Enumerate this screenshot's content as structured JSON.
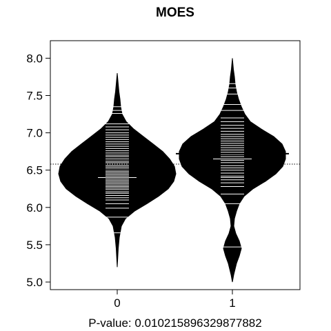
{
  "chart_data": {
    "type": "beanplot",
    "title": "MOES",
    "xlabel": "P-value: 0.010215896329877882",
    "ylabel": "",
    "ylim": [
      4.95,
      8.15
    ],
    "y_ticks": [
      5.0,
      5.5,
      6.0,
      6.5,
      7.0,
      7.5,
      8.0
    ],
    "y_tick_labels": [
      "5.0",
      "5.5",
      "6.0",
      "6.5",
      "7.0",
      "7.5",
      "8.0"
    ],
    "categories": [
      "0",
      "1"
    ],
    "overall_mean": 6.58,
    "groups": [
      {
        "name": "0",
        "mean": 6.51,
        "density": [
          [
            5.2,
            0.0
          ],
          [
            5.45,
            0.015
          ],
          [
            5.6,
            0.03
          ],
          [
            5.75,
            0.06
          ],
          [
            5.85,
            0.12
          ],
          [
            5.95,
            0.25
          ],
          [
            6.05,
            0.43
          ],
          [
            6.15,
            0.6
          ],
          [
            6.25,
            0.74
          ],
          [
            6.35,
            0.82
          ],
          [
            6.45,
            0.85
          ],
          [
            6.55,
            0.83
          ],
          [
            6.65,
            0.76
          ],
          [
            6.75,
            0.66
          ],
          [
            6.85,
            0.52
          ],
          [
            6.95,
            0.38
          ],
          [
            7.05,
            0.24
          ],
          [
            7.15,
            0.13
          ],
          [
            7.25,
            0.07
          ],
          [
            7.35,
            0.05
          ],
          [
            7.45,
            0.04
          ],
          [
            7.55,
            0.025
          ],
          [
            7.65,
            0.015
          ],
          [
            7.8,
            0.0
          ]
        ],
        "observations": [
          5.66,
          5.87,
          5.99,
          6.05,
          6.1,
          6.13,
          6.16,
          6.19,
          6.21,
          6.24,
          6.26,
          6.28,
          6.3,
          6.32,
          6.34,
          6.36,
          6.38,
          6.4,
          6.42,
          6.44,
          6.46,
          6.48,
          6.5,
          6.52,
          6.54,
          6.56,
          6.58,
          6.6,
          6.62,
          6.65,
          6.68,
          6.7,
          6.73,
          6.76,
          6.79,
          6.82,
          6.85,
          6.88,
          6.91,
          6.94,
          6.97,
          7.0,
          7.04,
          7.08,
          7.12,
          7.26,
          7.3,
          7.35
        ],
        "wide_lines": [
          5.66,
          5.87,
          6.4,
          7.26,
          7.35
        ]
      },
      {
        "name": "1",
        "mean": 6.72,
        "density": [
          [
            5.0,
            0.0
          ],
          [
            5.1,
            0.02
          ],
          [
            5.25,
            0.06
          ],
          [
            5.35,
            0.1
          ],
          [
            5.45,
            0.13
          ],
          [
            5.55,
            0.1
          ],
          [
            5.65,
            0.05
          ],
          [
            5.75,
            0.02
          ],
          [
            5.85,
            0.03
          ],
          [
            5.95,
            0.06
          ],
          [
            6.05,
            0.1
          ],
          [
            6.15,
            0.17
          ],
          [
            6.25,
            0.3
          ],
          [
            6.35,
            0.48
          ],
          [
            6.45,
            0.63
          ],
          [
            6.55,
            0.73
          ],
          [
            6.65,
            0.77
          ],
          [
            6.75,
            0.77
          ],
          [
            6.85,
            0.72
          ],
          [
            6.95,
            0.6
          ],
          [
            7.05,
            0.42
          ],
          [
            7.15,
            0.26
          ],
          [
            7.25,
            0.18
          ],
          [
            7.35,
            0.13
          ],
          [
            7.45,
            0.09
          ],
          [
            7.55,
            0.06
          ],
          [
            7.65,
            0.04
          ],
          [
            7.75,
            0.03
          ],
          [
            7.85,
            0.015
          ],
          [
            8.0,
            0.0
          ]
        ],
        "observations": [
          5.47,
          6.05,
          6.18,
          6.28,
          6.33,
          6.37,
          6.4,
          6.42,
          6.46,
          6.5,
          6.53,
          6.56,
          6.6,
          6.63,
          6.65,
          6.68,
          6.71,
          6.74,
          6.77,
          6.8,
          6.83,
          6.86,
          6.89,
          6.92,
          6.95,
          6.98,
          7.02,
          7.06,
          7.1,
          7.15,
          7.2,
          7.3,
          7.38,
          7.52,
          7.6,
          7.66
        ],
        "wide_lines": [
          5.47,
          6.65,
          7.66
        ]
      }
    ],
    "grid": false,
    "legend": "none"
  }
}
